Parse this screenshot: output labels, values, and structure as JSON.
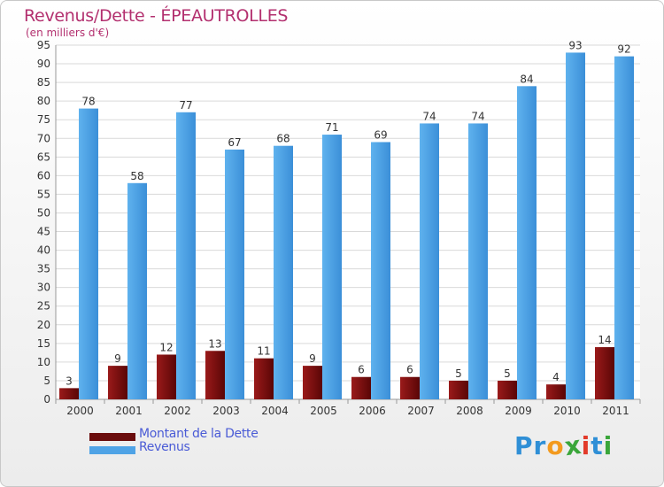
{
  "header": {
    "title": "Revenus/Dette - ÉPEAUTROLLES",
    "subtitle": "(en milliers d'€)"
  },
  "chart_data": {
    "type": "bar",
    "title": "Revenus/Dette - ÉPEAUTROLLES",
    "subtitle": "(en milliers d'€)",
    "categories": [
      "2000",
      "2001",
      "2002",
      "2003",
      "2004",
      "2005",
      "2006",
      "2007",
      "2008",
      "2009",
      "2010",
      "2011"
    ],
    "series": [
      {
        "name": "Montant de la Dette",
        "color": "#7a1010",
        "values": [
          3,
          9,
          12,
          13,
          11,
          9,
          6,
          6,
          5,
          5,
          4,
          14
        ]
      },
      {
        "name": "Revenus",
        "color": "#4fa3e6",
        "values": [
          78,
          58,
          77,
          67,
          68,
          71,
          69,
          74,
          74,
          84,
          93,
          92
        ]
      }
    ],
    "ylim": [
      0,
      95
    ],
    "ytick_step": 5,
    "grid": true,
    "legend_position": "bottom-left"
  },
  "legend": {
    "items": [
      {
        "label": "Montant de la Dette",
        "color": "#7a1010"
      },
      {
        "label": "Revenus",
        "color": "#4fa3e6"
      }
    ]
  },
  "logo": {
    "text": "Proxiti",
    "letters": [
      "P",
      "r",
      "o",
      "x",
      "i",
      "t",
      "i"
    ],
    "colors": [
      "#2f8fd6",
      "#2f8fd6",
      "#f39a1e",
      "#3aa63a",
      "#e23a2a",
      "#2f8fd6",
      "#3aa63a"
    ]
  }
}
